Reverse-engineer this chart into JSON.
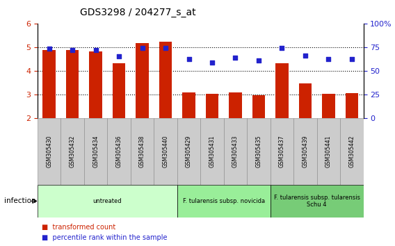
{
  "title": "GDS3298 / 204277_s_at",
  "samples": [
    "GSM305430",
    "GSM305432",
    "GSM305434",
    "GSM305436",
    "GSM305438",
    "GSM305440",
    "GSM305429",
    "GSM305431",
    "GSM305433",
    "GSM305435",
    "GSM305437",
    "GSM305439",
    "GSM305441",
    "GSM305442"
  ],
  "bar_values": [
    4.88,
    4.88,
    4.82,
    4.32,
    5.18,
    5.22,
    3.08,
    3.02,
    3.08,
    2.96,
    4.32,
    3.46,
    3.02,
    3.04
  ],
  "dot_values": [
    73,
    72,
    72,
    65,
    74,
    74,
    62,
    59,
    64,
    61,
    74,
    66,
    62,
    62
  ],
  "bar_bottom": 2.0,
  "ylim_left": [
    2,
    6
  ],
  "ylim_right": [
    0,
    100
  ],
  "yticks_left": [
    2,
    3,
    4,
    5,
    6
  ],
  "yticks_right": [
    0,
    25,
    50,
    75,
    100
  ],
  "bar_color": "#cc2200",
  "dot_color": "#2222cc",
  "infection_groups": [
    {
      "label": "untreated",
      "start": 0,
      "end": 6,
      "color": "#ccffcc"
    },
    {
      "label": "F. tularensis subsp. novicida",
      "start": 6,
      "end": 10,
      "color": "#99ee99"
    },
    {
      "label": "F. tularensis subsp. tularensis\nSchu 4",
      "start": 10,
      "end": 14,
      "color": "#77cc77"
    }
  ],
  "infection_label": "infection",
  "legend_red": "transformed count",
  "legend_blue": "percentile rank within the sample",
  "figsize": [
    5.68,
    3.54
  ],
  "dpi": 100
}
